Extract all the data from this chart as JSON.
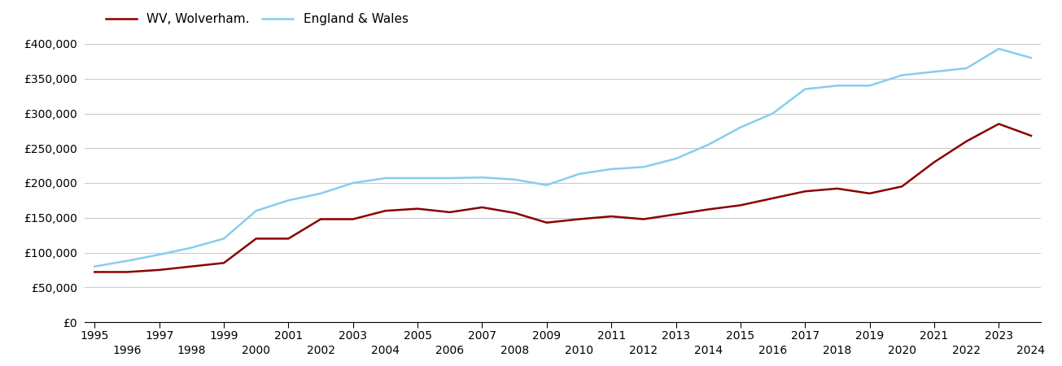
{
  "years": [
    1995,
    1996,
    1997,
    1998,
    1999,
    2000,
    2001,
    2002,
    2003,
    2004,
    2005,
    2006,
    2007,
    2008,
    2009,
    2010,
    2011,
    2012,
    2013,
    2014,
    2015,
    2016,
    2017,
    2018,
    2019,
    2020,
    2021,
    2022,
    2023,
    2024
  ],
  "wolverhampton": [
    72000,
    72000,
    75000,
    80000,
    85000,
    120000,
    120000,
    148000,
    148000,
    160000,
    163000,
    158000,
    165000,
    157000,
    143000,
    148000,
    152000,
    148000,
    155000,
    162000,
    168000,
    178000,
    188000,
    192000,
    185000,
    195000,
    230000,
    260000,
    285000,
    268000
  ],
  "england_wales": [
    80000,
    88000,
    97000,
    107000,
    120000,
    160000,
    175000,
    185000,
    200000,
    207000,
    207000,
    207000,
    208000,
    205000,
    197000,
    213000,
    220000,
    223000,
    235000,
    255000,
    280000,
    300000,
    335000,
    340000,
    340000,
    355000,
    360000,
    365000,
    393000,
    380000
  ],
  "wolverhampton_color": "#8B0000",
  "england_wales_color": "#87CEEB",
  "legend_wv": "WV, Wolverham.",
  "legend_ew": "England & Wales",
  "ylim": [
    0,
    400000
  ],
  "yticks": [
    0,
    50000,
    100000,
    150000,
    200000,
    250000,
    300000,
    350000,
    400000
  ],
  "background_color": "#ffffff",
  "grid_color": "#cccccc",
  "line_width": 1.8,
  "legend_fontsize": 11,
  "tick_fontsize": 10
}
